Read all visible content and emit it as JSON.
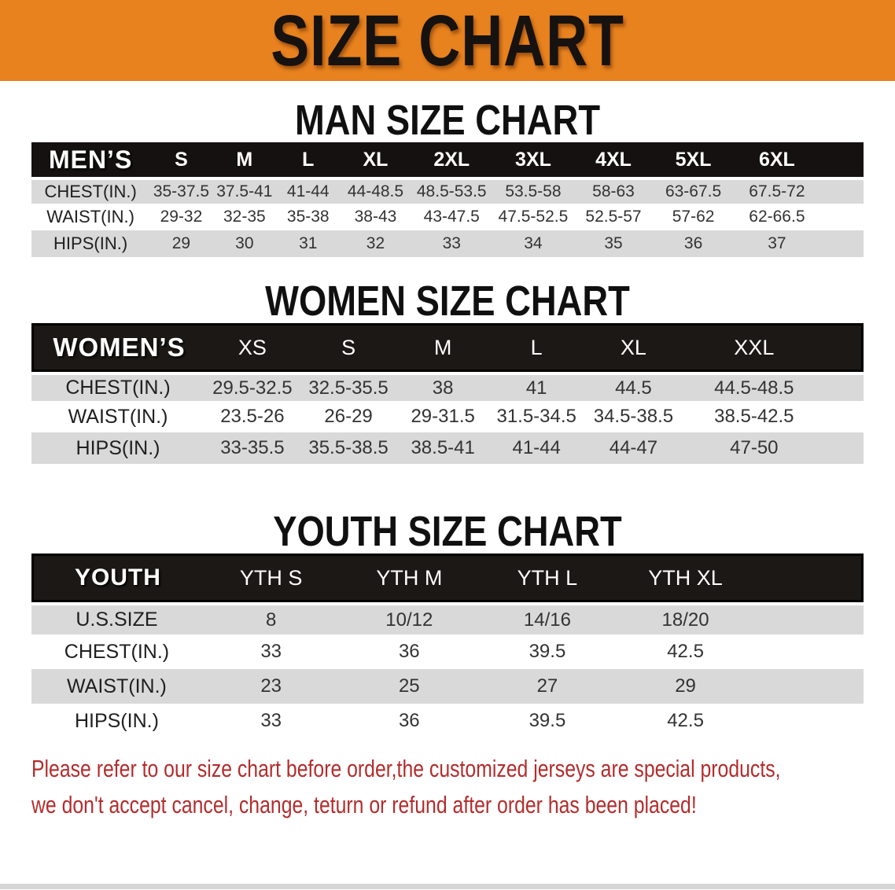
{
  "banner": {
    "title": "SIZE CHART"
  },
  "men": {
    "heading": "MAN SIZE CHART",
    "label": "MEN’S",
    "sizes": [
      "S",
      "M",
      "L",
      "XL",
      "2XL",
      "3XL",
      "4XL",
      "5XL",
      "6XL"
    ],
    "rows": [
      {
        "label": "CHEST(IN.)",
        "values": [
          "35-37.5",
          "37.5-41",
          "41-44",
          "44-48.5",
          "48.5-53.5",
          "53.5-58",
          "58-63",
          "63-67.5",
          "67.5-72"
        ]
      },
      {
        "label": "WAIST(IN.)",
        "values": [
          "29-32",
          "32-35",
          "35-38",
          "38-43",
          "43-47.5",
          "47.5-52.5",
          "52.5-57",
          "57-62",
          "62-66.5"
        ]
      },
      {
        "label": "HIPS(IN.)",
        "values": [
          "29",
          "30",
          "31",
          "32",
          "33",
          "34",
          "35",
          "36",
          "37"
        ]
      }
    ]
  },
  "women": {
    "heading": "WOMEN SIZE CHART",
    "label": "WOMEN’S",
    "sizes": [
      "XS",
      "S",
      "M",
      "L",
      "XL",
      "XXL"
    ],
    "rows": [
      {
        "label": "CHEST(IN.)",
        "values": [
          "29.5-32.5",
          "32.5-35.5",
          "38",
          "41",
          "44.5",
          "44.5-48.5"
        ]
      },
      {
        "label": "WAIST(IN.)",
        "values": [
          "23.5-26",
          "26-29",
          "29-31.5",
          "31.5-34.5",
          "34.5-38.5",
          "38.5-42.5"
        ]
      },
      {
        "label": "HIPS(IN.)",
        "values": [
          "33-35.5",
          "35.5-38.5",
          "38.5-41",
          "41-44",
          "44-47",
          "47-50"
        ]
      }
    ]
  },
  "youth": {
    "heading": "YOUTH SIZE CHART",
    "label": "YOUTH",
    "sizes": [
      "YTH S",
      "YTH M",
      "YTH L",
      "YTH XL"
    ],
    "rows": [
      {
        "label": "U.S.SIZE",
        "values": [
          "8",
          "10/12",
          "14/16",
          "18/20"
        ]
      },
      {
        "label": "CHEST(IN.)",
        "values": [
          "33",
          "36",
          "39.5",
          "42.5"
        ]
      },
      {
        "label": "WAIST(IN.)",
        "values": [
          "23",
          "25",
          "27",
          "29"
        ]
      },
      {
        "label": "HIPS(IN.)",
        "values": [
          "33",
          "36",
          "39.5",
          "42.5"
        ]
      }
    ]
  },
  "disclaimer": {
    "line1": "Please refer to our size chart before order,the customized jerseys are special products,",
    "line2": "we don't accept cancel, change, teturn or refund after order has been placed!"
  },
  "colors": {
    "banner_bg": "#E8821E",
    "header_bar_bg": "#1B1815",
    "row_stripe": "#D9D9D9",
    "disclaimer_text": "#B32D2D"
  }
}
